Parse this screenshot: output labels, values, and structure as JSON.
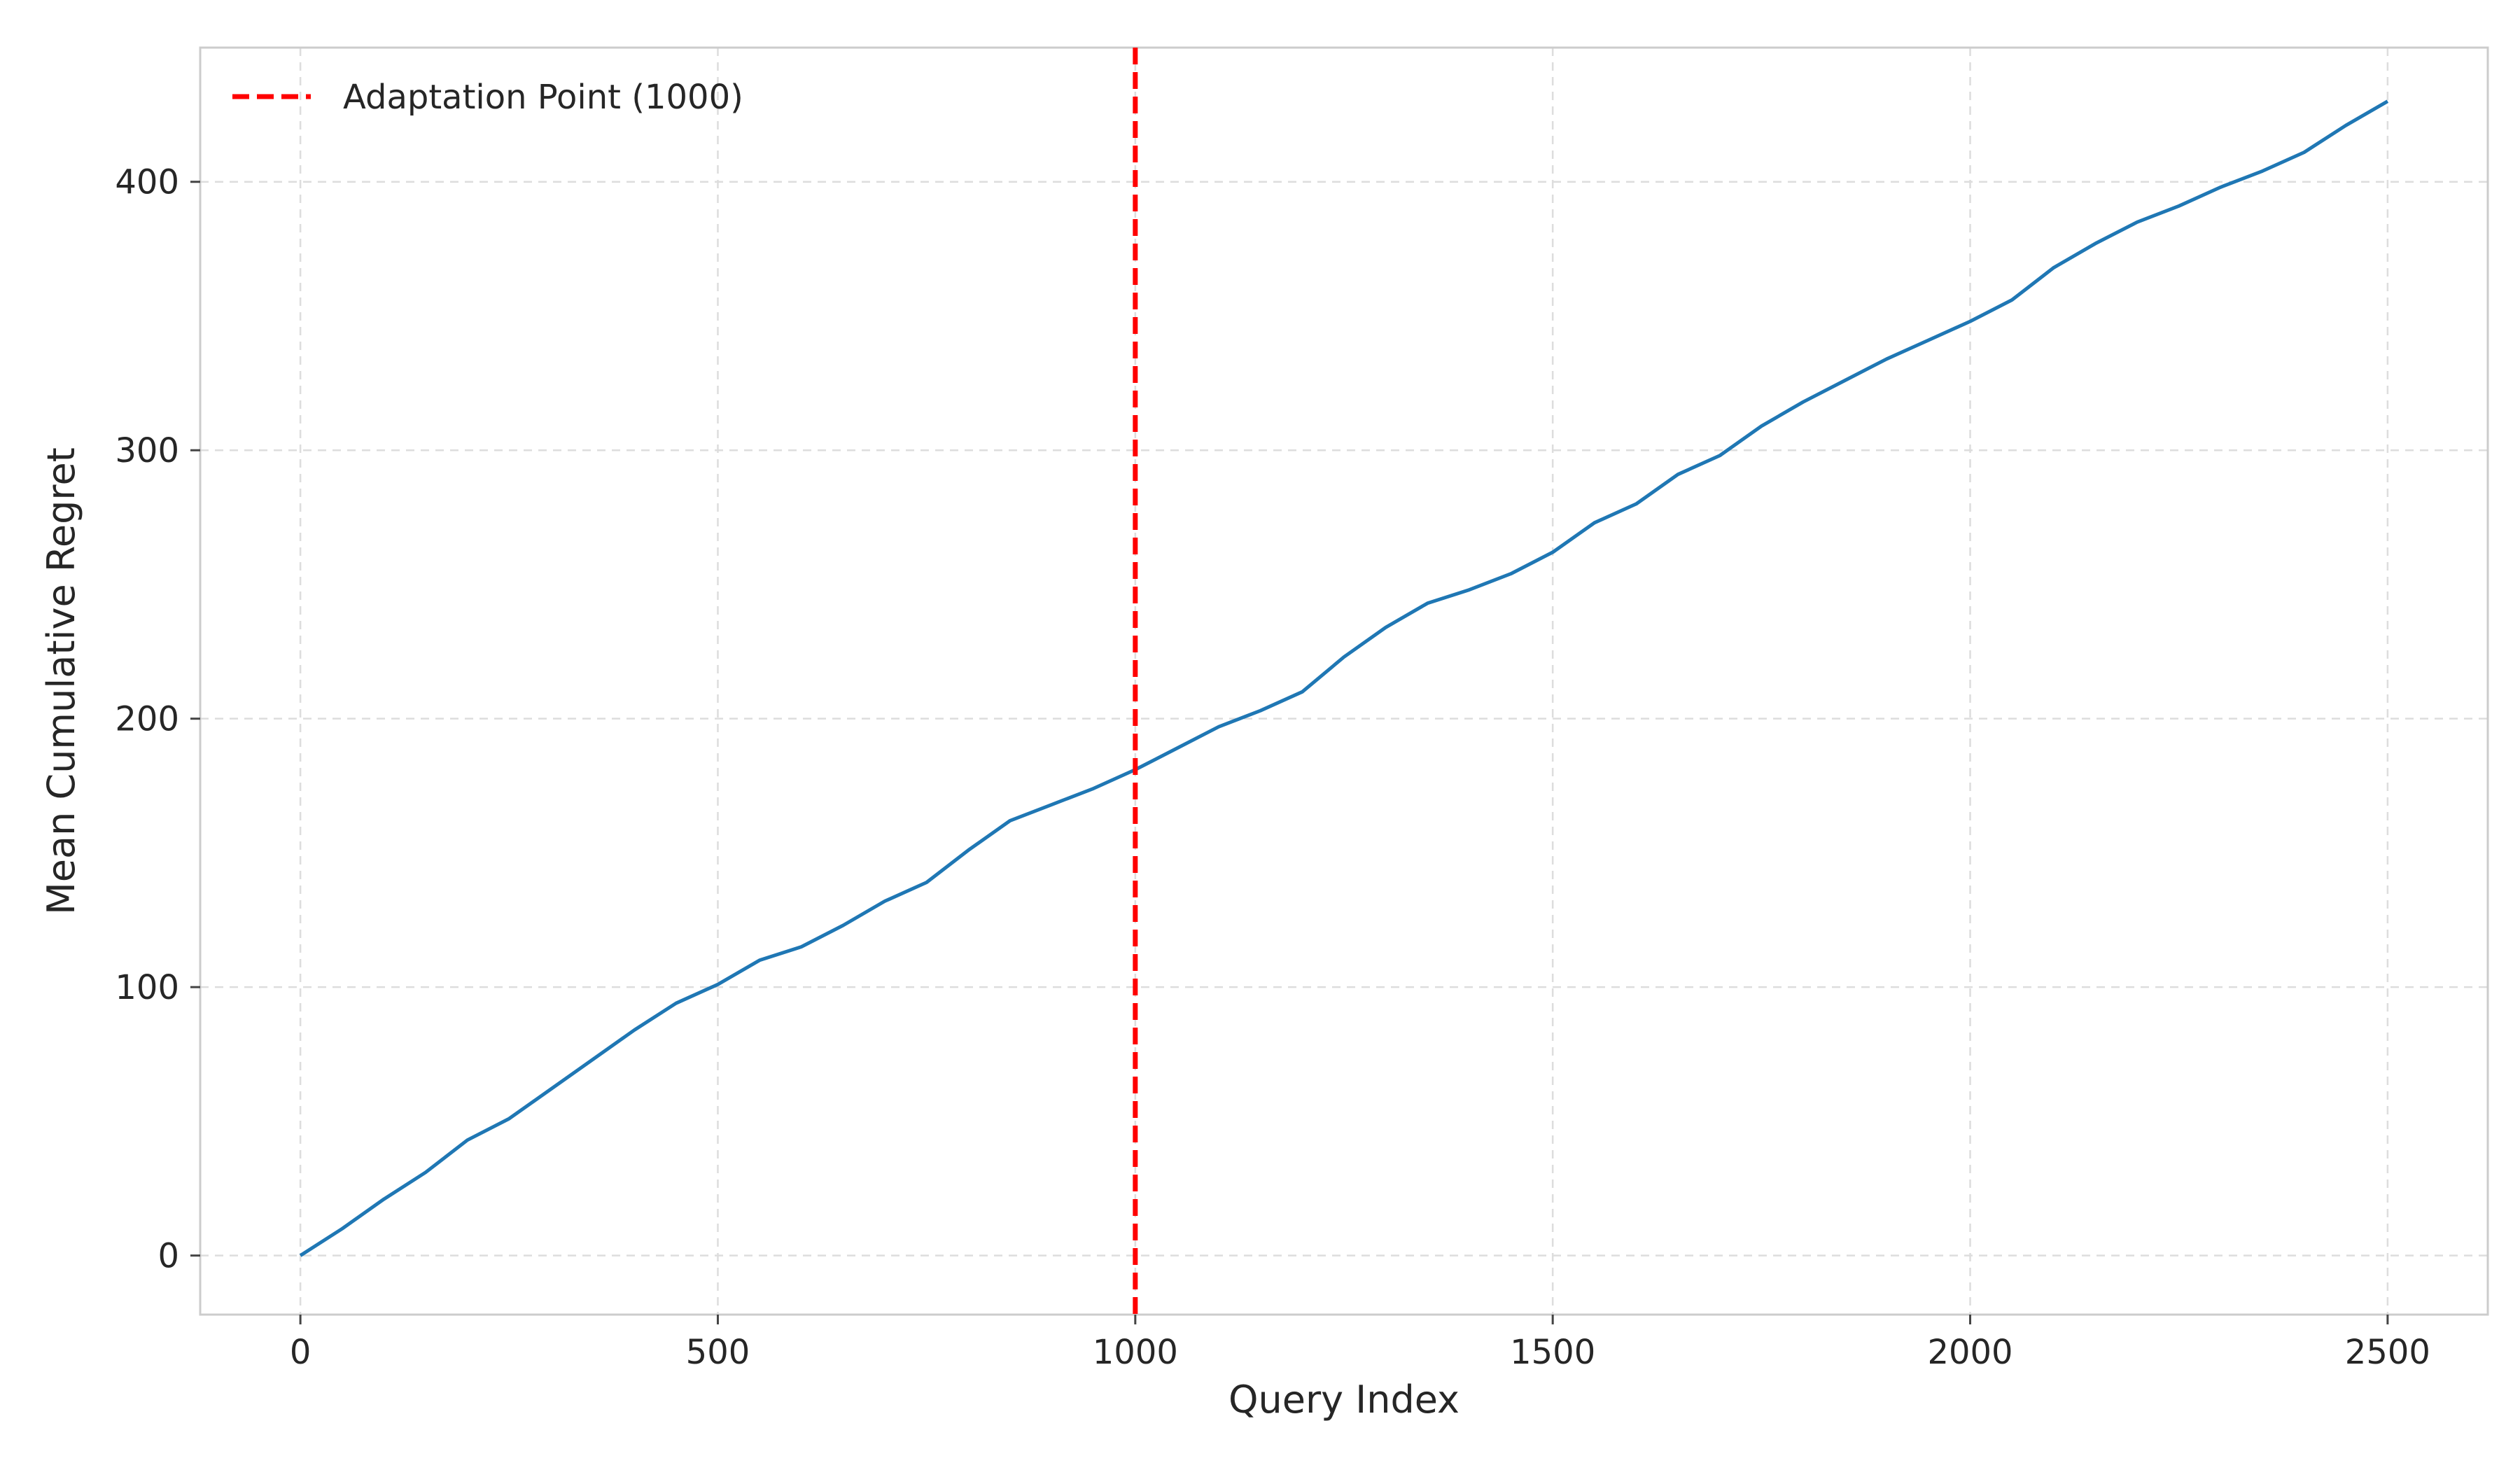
{
  "chart_data": {
    "type": "line",
    "title": "",
    "xlabel": "Query Index",
    "ylabel": "Mean Cumulative Regret",
    "xlim": [
      -120,
      2620
    ],
    "ylim": [
      -22,
      450
    ],
    "xticks": [
      0,
      500,
      1000,
      1500,
      2000,
      2500
    ],
    "yticks": [
      0,
      100,
      200,
      300,
      400
    ],
    "grid": true,
    "legend_position": "upper-left",
    "series": [
      {
        "color": "#1f77b4",
        "x": [
          0,
          50,
          100,
          150,
          200,
          250,
          300,
          350,
          400,
          450,
          500,
          550,
          600,
          650,
          700,
          750,
          800,
          850,
          900,
          950,
          1000,
          1050,
          1100,
          1150,
          1200,
          1250,
          1300,
          1350,
          1400,
          1450,
          1500,
          1550,
          1600,
          1650,
          1700,
          1750,
          1800,
          1850,
          1900,
          1950,
          2000,
          2050,
          2100,
          2150,
          2200,
          2250,
          2300,
          2350,
          2400,
          2450,
          2500
        ],
        "y": [
          0,
          10,
          21,
          31,
          43,
          51,
          62,
          73,
          84,
          94,
          101,
          110,
          115,
          123,
          132,
          139,
          151,
          162,
          168,
          174,
          181,
          189,
          197,
          203,
          210,
          223,
          234,
          243,
          248,
          254,
          262,
          273,
          280,
          291,
          298,
          309,
          318,
          326,
          334,
          341,
          348,
          356,
          368,
          377,
          385,
          391,
          398,
          404,
          411,
          421,
          430
        ]
      },
      {
        "name": "Adaptation Point (1000)",
        "type": "vline",
        "x": 1000,
        "color": "#ff0000",
        "style": "dashed"
      }
    ]
  }
}
